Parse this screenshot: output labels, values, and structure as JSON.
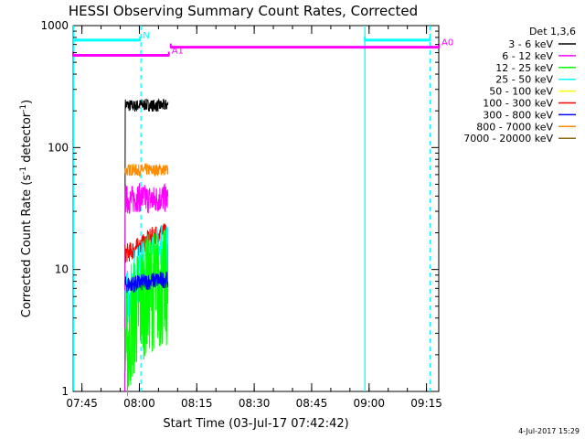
{
  "chart_data": {
    "type": "line",
    "title": "HESSI Observing Summary Count Rates, Corrected",
    "xlabel": "Start Time (03-Jul-17 07:42:42)",
    "ylabel_parts": {
      "main": "Corrected Count Rate (s",
      "sup1": "-1",
      "mid": " detector",
      "sup2": "-1",
      "end": ")"
    },
    "x_unit": "minutes after 07:42:42",
    "xlim": [
      0,
      95.5
    ],
    "ylim": [
      1,
      1000
    ],
    "y_scale": "log",
    "x_ticks": [
      {
        "label": "07:45",
        "value": 2.3
      },
      {
        "label": "08:00",
        "value": 17.3
      },
      {
        "label": "08:15",
        "value": 32.3
      },
      {
        "label": "08:30",
        "value": 47.3
      },
      {
        "label": "08:45",
        "value": 62.3
      },
      {
        "label": "09:00",
        "value": 77.3
      },
      {
        "label": "09:15",
        "value": 92.3
      }
    ],
    "y_ticks": [
      {
        "label": "1",
        "value": 1
      },
      {
        "label": "10",
        "value": 10
      },
      {
        "label": "100",
        "value": 100
      },
      {
        "label": "1000",
        "value": 1000
      }
    ],
    "legend_title": "Det 1,3,6",
    "legend_placement": "right",
    "series": [
      {
        "name": "3 - 6 keV",
        "color": "#000000",
        "base": 220,
        "jitter": 0.05,
        "points": [
          [
            13.5,
            1.2
          ],
          [
            13.6,
            225
          ],
          [
            14.5,
            222
          ],
          [
            16,
            218
          ],
          [
            18,
            225
          ],
          [
            20,
            222
          ],
          [
            22,
            220
          ],
          [
            24.8,
            223
          ]
        ]
      },
      {
        "name": "6 - 12 keV",
        "color": "#ff00ff",
        "base": 38,
        "jitter": 0.12,
        "points": [
          [
            13.5,
            1.0
          ],
          [
            13.6,
            38
          ],
          [
            15,
            37
          ],
          [
            17,
            39
          ],
          [
            19,
            38
          ],
          [
            21,
            37
          ],
          [
            23,
            39
          ],
          [
            24.8,
            38
          ]
        ]
      },
      {
        "name": "12 - 25 keV",
        "color": "#00ff00",
        "base": 6.5,
        "jitter": 0.5,
        "points": [
          [
            13.6,
            2.5
          ],
          [
            14.5,
            2.6
          ],
          [
            15.5,
            3.8
          ],
          [
            16.5,
            4.5
          ],
          [
            17.5,
            5.5
          ],
          [
            18.5,
            5.8
          ],
          [
            20,
            6.5
          ],
          [
            21.5,
            7
          ],
          [
            23,
            6.8
          ],
          [
            24.8,
            7
          ]
        ]
      },
      {
        "name": "25 - 50 keV",
        "color": "#00ffff",
        "base": 12,
        "jitter": 0.25,
        "points": [
          [
            13.6,
            5
          ],
          [
            15,
            7.5
          ],
          [
            16.5,
            9
          ],
          [
            18,
            10
          ],
          [
            20,
            12
          ],
          [
            22,
            13
          ],
          [
            24.8,
            14
          ]
        ]
      },
      {
        "name": "50 - 100 keV",
        "color": "#ffff00",
        "base": 9,
        "jitter": 0.1,
        "points": [
          [
            13.6,
            9
          ],
          [
            24.8,
            9
          ]
        ]
      },
      {
        "name": "100 - 300 keV",
        "color": "#ff0000",
        "base": 16,
        "jitter": 0.08,
        "points": [
          [
            13.6,
            13.5
          ],
          [
            15,
            14
          ],
          [
            16.5,
            15
          ],
          [
            18,
            16
          ],
          [
            19.5,
            17.5
          ],
          [
            21,
            19
          ],
          [
            23,
            20
          ],
          [
            24.8,
            20
          ]
        ]
      },
      {
        "name": "300 - 800 keV",
        "color": "#0000ff",
        "base": 7.8,
        "jitter": 0.07,
        "points": [
          [
            13.6,
            7.5
          ],
          [
            16,
            7.6
          ],
          [
            18,
            7.8
          ],
          [
            20,
            8
          ],
          [
            22,
            8.2
          ],
          [
            24.8,
            8.3
          ]
        ]
      },
      {
        "name": "800 - 7000 keV",
        "color": "#ff8c00",
        "base": 65,
        "jitter": 0.05,
        "points": [
          [
            13.6,
            64
          ],
          [
            15,
            66
          ],
          [
            17,
            65
          ],
          [
            19,
            66
          ],
          [
            21,
            65
          ],
          [
            23,
            66
          ],
          [
            24.8,
            65
          ]
        ]
      },
      {
        "name": "7000 - 20000 keV",
        "color": "#8b6914",
        "base": 5,
        "jitter": 0.05,
        "points": []
      }
    ],
    "vertical_lines": [
      {
        "x": 0.1,
        "style": "solid",
        "color": "#00ffff"
      },
      {
        "x": 17.7,
        "style": "dashed",
        "color": "#00ffff"
      },
      {
        "x": 76.2,
        "style": "solid",
        "color": "#00ffff"
      },
      {
        "x": 93.2,
        "style": "dashed",
        "color": "#00ffff"
      }
    ],
    "flag_bars": [
      {
        "label": "N",
        "color": "#00ffff",
        "y": 760,
        "segments": [
          [
            0,
            17.5
          ],
          [
            76.2,
            93.2
          ]
        ]
      },
      {
        "label": "A0",
        "color": "#ff00ff",
        "y": 665,
        "segments": [
          [
            25.5,
            95.5
          ]
        ]
      },
      {
        "label": "A1",
        "color": "#ff00ff",
        "y": 570,
        "segments": [
          [
            0,
            25.0
          ]
        ]
      }
    ],
    "footer_date": "4-Jul-2017 15:29"
  }
}
